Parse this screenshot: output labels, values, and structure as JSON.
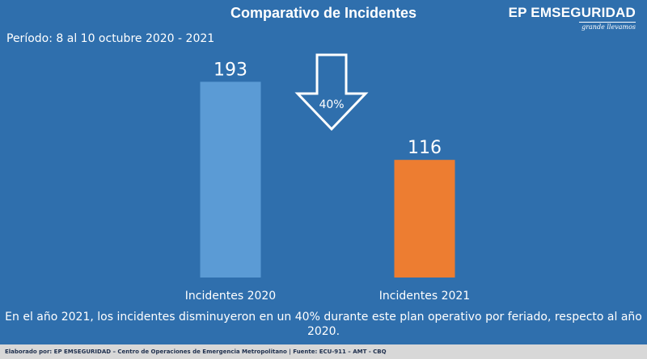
{
  "header": {
    "title": "Comparativo de Incidentes",
    "brand_name": "EP EMSEGURIDAD",
    "brand_tagline": "grande llevamos"
  },
  "period": "Período: 8 al 10 octubre 2020 - 2021",
  "chart_data": {
    "type": "bar",
    "title": "Comparativo de Incidentes",
    "categories": [
      "Incidentes 2020",
      "Incidentes 2021"
    ],
    "values": [
      193,
      116
    ],
    "data_labels": [
      "193",
      "116"
    ],
    "colors": [
      "#5b9bd5",
      "#ed7d31"
    ],
    "ylim": [
      0,
      210
    ],
    "grid": false,
    "annotation": {
      "label": "40%",
      "icon": "down-arrow-icon"
    }
  },
  "summary": "En el año 2021, los incidentes disminuyeron en un 40% durante este plan operativo por feriado, respecto al año 2020.",
  "credit": "Elaborado por: EP EMSEGURIDAD – Centro de Operaciones de Emergencia Metropolitano | Fuente: ECU-911 – AMT - CBQ"
}
